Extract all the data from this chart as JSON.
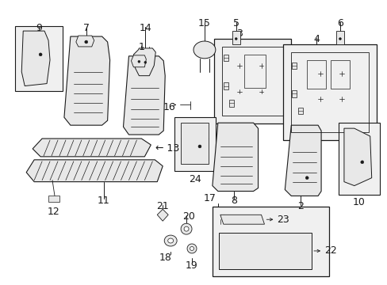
{
  "bg_color": "#ffffff",
  "line_color": "#1a1a1a",
  "fill_light": "#e8e8e8",
  "fill_box": "#f0f0f0",
  "font_size": 9,
  "figsize": [
    4.89,
    3.6
  ],
  "dpi": 100
}
